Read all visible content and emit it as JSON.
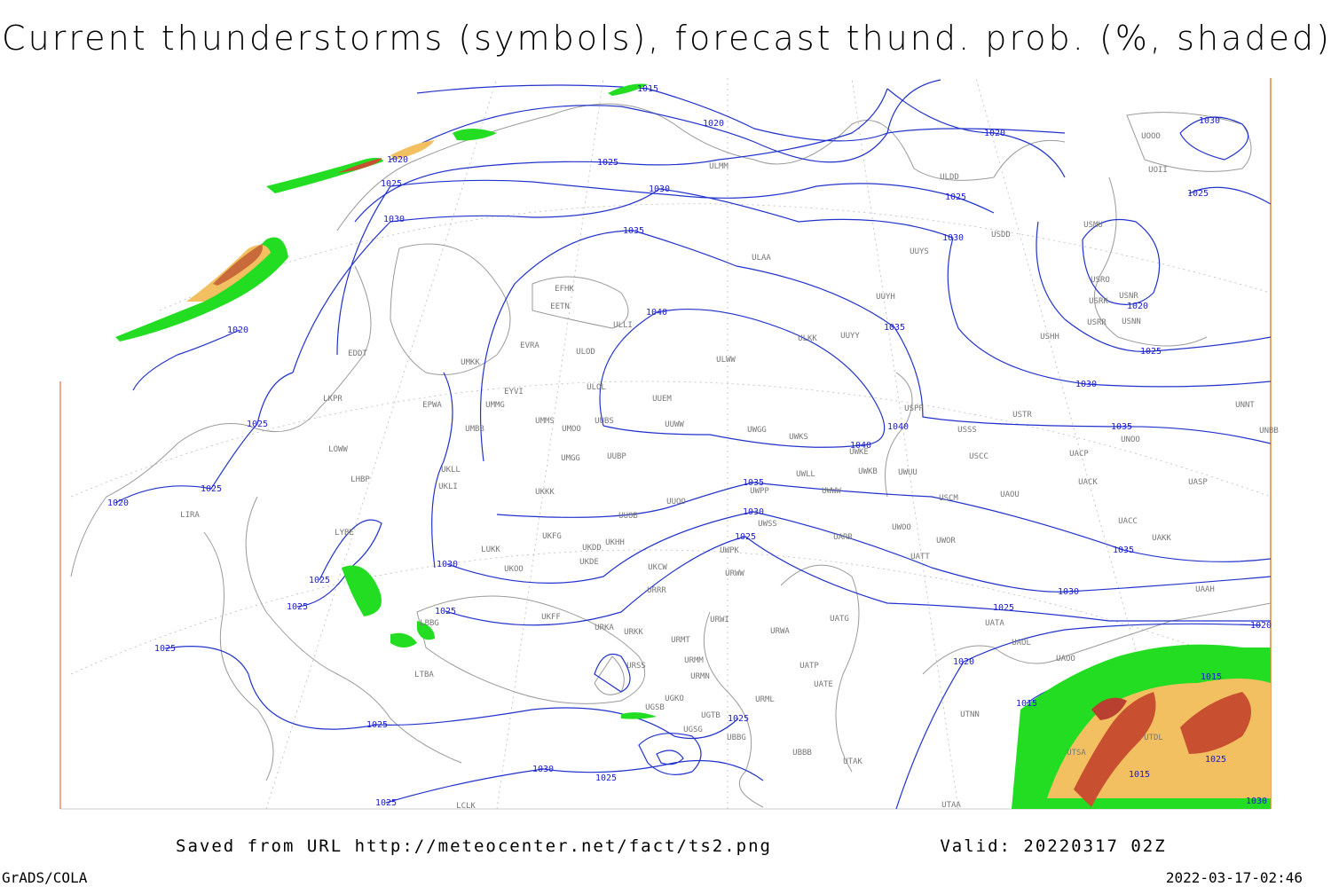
{
  "header": {
    "title": "Current thunderstorms (symbols), forecast thund. prob. (%, shaded)"
  },
  "isobar_labels": [
    1015,
    1020,
    1020,
    1025,
    1020,
    1025,
    1030,
    1025,
    1030,
    1035,
    1030,
    1025,
    1030,
    1020,
    1040,
    1035,
    1020,
    1025,
    1030,
    1025,
    1040,
    1040,
    1035,
    1025,
    1020,
    1035,
    1030,
    1025,
    1035,
    1030,
    1025,
    1025,
    1030,
    1025,
    1025,
    1025,
    1020,
    1020,
    1015,
    1015,
    1025,
    1025,
    1030,
    1025,
    1025,
    1015,
    1025,
    1030
  ],
  "station_labels": [
    "ULMM",
    "ULDD",
    "USDD",
    "UUYS",
    "ULAA",
    "USMU",
    "UOOO",
    "UOII",
    "USRO",
    "USRK",
    "USNR",
    "USRR",
    "USNN",
    "USHH",
    "EFHK",
    "EETN",
    "ULLI",
    "UUYY",
    "ULKK",
    "UUYH",
    "EVRA",
    "ULOD",
    "ULWW",
    "EDDT",
    "UMKK",
    "EYVI",
    "ULOL",
    "UUEM",
    "EPWA",
    "UMMG",
    "LKPR",
    "USPP",
    "UMMS",
    "UMOO",
    "UUBS",
    "UUWW",
    "UWGG",
    "UWKS",
    "USSS",
    "USTR",
    "UNOO",
    "UNNT",
    "UNBB",
    "UMBB",
    "LOWW",
    "UMGG",
    "UUBP",
    "UWKE",
    "USCC",
    "UACP",
    "UKLL",
    "LHBP",
    "UWKB",
    "UWUU",
    "UWLL",
    "UACK",
    "UASP",
    "UKLI",
    "UKKK",
    "UWPP",
    "UWWW",
    "UUOO",
    "USCM",
    "UAOU",
    "LIRA",
    "UUOB",
    "UWSS",
    "UACC",
    "LYBE",
    "UKFG",
    "UARR",
    "UWOO",
    "UAKK",
    "LUKK",
    "UKOO",
    "UKHH",
    "UKDD",
    "UKDE",
    "UWOR",
    "UATT",
    "UKCW",
    "UWPK",
    "URWW",
    "URRR",
    "UAAH",
    "UATG",
    "UKFF",
    "URWI",
    "UATA",
    "LBBG",
    "URKA",
    "URKK",
    "URMT",
    "URWA",
    "UAOL",
    "UAOO",
    "URSS",
    "URMM",
    "UATP",
    "URMN",
    "UATE",
    "LTBA",
    "UGKO",
    "URML",
    "UGSB",
    "UGTB",
    "UTNN",
    "UGSG",
    "UBBG",
    "UTDL",
    "UTSA",
    "UBBB",
    "UTAK",
    "UTAA",
    "LCLK"
  ],
  "footer": {
    "source": "Saved from URL http://meteocenter.net/fact/ts2.png",
    "valid": "Valid: 20220317 02Z",
    "software": "GrADS/COLA",
    "timestamp": "2022-03-17-02:46"
  }
}
